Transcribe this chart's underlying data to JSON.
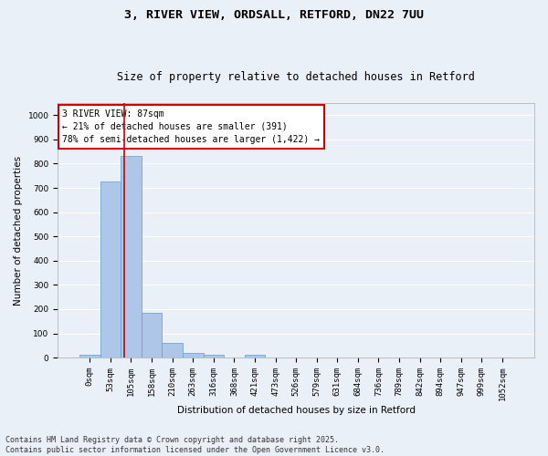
{
  "title_line1": "3, RIVER VIEW, ORDSALL, RETFORD, DN22 7UU",
  "title_line2": "Size of property relative to detached houses in Retford",
  "xlabel": "Distribution of detached houses by size in Retford",
  "ylabel": "Number of detached properties",
  "bar_labels": [
    "0sqm",
    "53sqm",
    "105sqm",
    "158sqm",
    "210sqm",
    "263sqm",
    "316sqm",
    "368sqm",
    "421sqm",
    "473sqm",
    "526sqm",
    "579sqm",
    "631sqm",
    "684sqm",
    "736sqm",
    "789sqm",
    "842sqm",
    "894sqm",
    "947sqm",
    "999sqm",
    "1052sqm"
  ],
  "bar_values": [
    12,
    728,
    830,
    183,
    60,
    18,
    12,
    0,
    10,
    0,
    0,
    0,
    0,
    0,
    0,
    0,
    0,
    0,
    0,
    0,
    0
  ],
  "bar_color": "#aec6e8",
  "bar_edge_color": "#5a9fd4",
  "annotation_title": "3 RIVER VIEW: 87sqm",
  "annotation_line1": "← 21% of detached houses are smaller (391)",
  "annotation_line2": "78% of semi-detached houses are larger (1,422) →",
  "annotation_box_color": "#ffffff",
  "annotation_box_edge_color": "#cc0000",
  "vline_color": "#cc0000",
  "vline_x": 1.65,
  "ylim": [
    0,
    1050
  ],
  "yticks": [
    0,
    100,
    200,
    300,
    400,
    500,
    600,
    700,
    800,
    900,
    1000
  ],
  "bg_color": "#eaf0f8",
  "plot_bg_color": "#eaf0f8",
  "grid_color": "#ffffff",
  "footnote_line1": "Contains HM Land Registry data © Crown copyright and database right 2025.",
  "footnote_line2": "Contains public sector information licensed under the Open Government Licence v3.0.",
  "title_fontsize": 9.5,
  "subtitle_fontsize": 8.5,
  "axis_label_fontsize": 7.5,
  "tick_fontsize": 6.5,
  "annotation_fontsize": 7,
  "footnote_fontsize": 6
}
